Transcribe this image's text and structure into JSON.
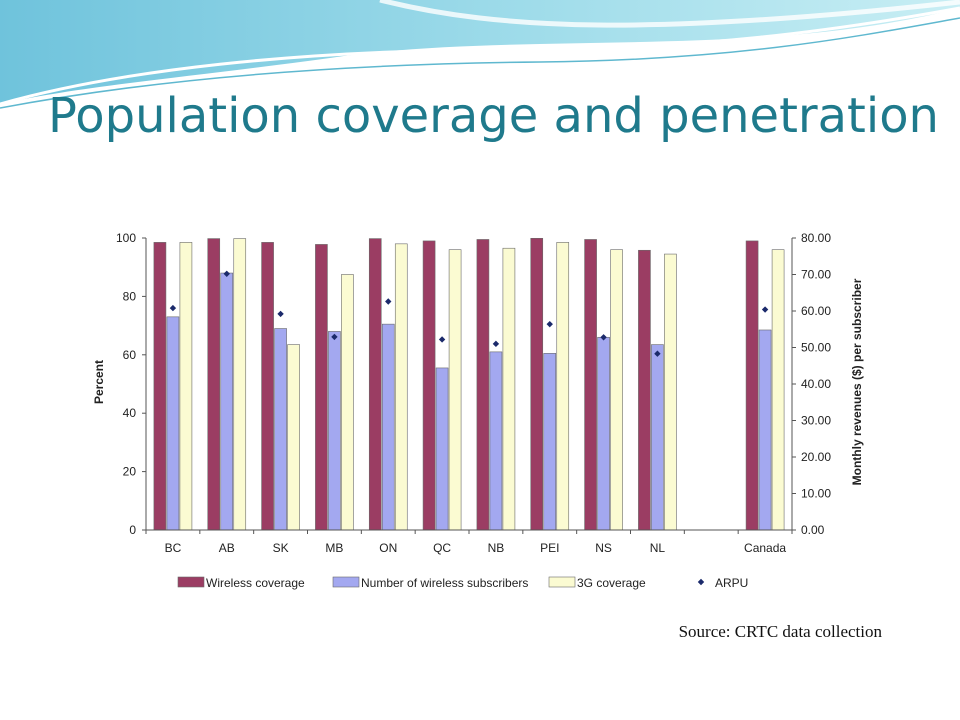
{
  "slide": {
    "title": "Population coverage and penetration"
  },
  "source": "Source: CRTC data collection",
  "colors": {
    "title": "#1f7a8c",
    "wireless_coverage": "#9b3d63",
    "subscribers": "#a3a8f0",
    "coverage_3g": "#fbfbd2",
    "arpu": "#1b2a6b"
  },
  "chart_data": {
    "type": "bar",
    "categories": [
      "BC",
      "AB",
      "SK",
      "MB",
      "ON",
      "QC",
      "NB",
      "PEI",
      "NS",
      "NL",
      "",
      "Canada"
    ],
    "series": [
      {
        "name": "Wireless coverage",
        "type": "bar",
        "axis": "left",
        "values": [
          98.5,
          99.8,
          98.5,
          97.8,
          99.8,
          99.0,
          99.5,
          99.9,
          99.5,
          95.8,
          null,
          99.0
        ]
      },
      {
        "name": "Number of wireless subscribers",
        "type": "bar",
        "axis": "left",
        "values": [
          73,
          88,
          69,
          68,
          70.5,
          55.5,
          61,
          60.5,
          66,
          63.5,
          null,
          68.5
        ]
      },
      {
        "name": "3G coverage",
        "type": "bar",
        "axis": "left",
        "values": [
          98.5,
          99.8,
          63.5,
          87.5,
          98,
          96,
          96.5,
          98.5,
          96,
          94.5,
          null,
          96
        ]
      },
      {
        "name": "ARPU",
        "type": "scatter",
        "axis": "right",
        "values": [
          60.8,
          70.2,
          59.2,
          52.9,
          62.6,
          52.2,
          51.0,
          56.4,
          52.8,
          48.3,
          null,
          60.4
        ]
      }
    ],
    "ylabel": "Percent",
    "ylim": [
      0,
      100
    ],
    "yticks": [
      "0",
      "20",
      "40",
      "60",
      "80",
      "100"
    ],
    "y2label": "Monthly revenues ($) per subscriber",
    "y2lim": [
      0,
      80
    ],
    "y2ticks": [
      "0.00",
      "10.00",
      "20.00",
      "30.00",
      "40.00",
      "50.00",
      "60.00",
      "70.00",
      "80.00"
    ],
    "legend": "bottom",
    "grid": false
  }
}
